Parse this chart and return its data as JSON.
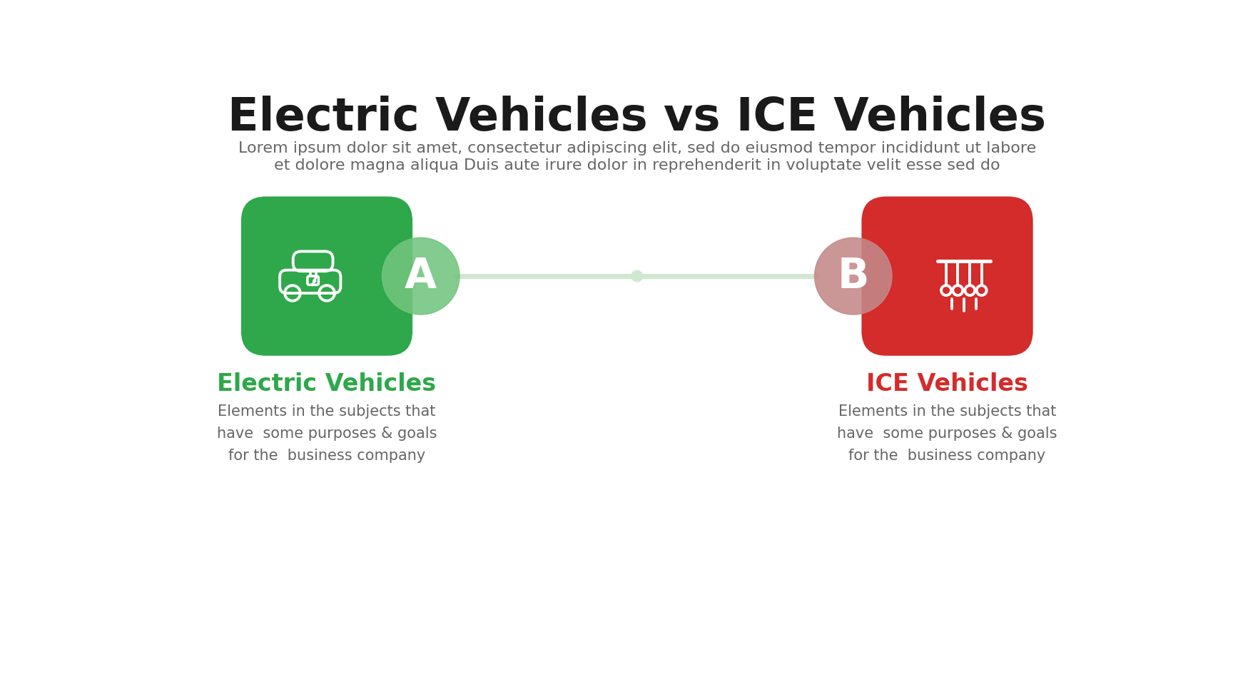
{
  "title": "Electric Vehicles vs ICE Vehicles",
  "subtitle_line1": "Lorem ipsum dolor sit amet, consectetur adipiscing elit, sed do eiusmod tempor incididunt ut labore",
  "subtitle_line2": "et dolore magna aliqua Duis aute irure dolor in reprehenderit in voluptate velit esse sed do",
  "background_color": "#ffffff",
  "title_color": "#1a1a1a",
  "title_fontsize": 46,
  "subtitle_color": "#666666",
  "subtitle_fontsize": 16,
  "left_box_color": "#2ea84a",
  "right_box_color": "#d42b2b",
  "left_circle_color": "#72c47e",
  "right_circle_color": "#c48888",
  "connector_color": "#d0e8d0",
  "connector_mid_color": "#d0e8d0",
  "left_label": "A",
  "right_label": "B",
  "left_title": "Electric Vehicles",
  "right_title": "ICE Vehicles",
  "left_title_color": "#2ea84a",
  "right_title_color": "#d42b2b",
  "description_text": "Elements in the subjects that\nhave  some purposes & goals\nfor the  business company",
  "description_color": "#666666",
  "description_fontsize": 15,
  "label_fontsize": 42,
  "category_title_fontsize": 24,
  "icon_color": "#ffffff"
}
